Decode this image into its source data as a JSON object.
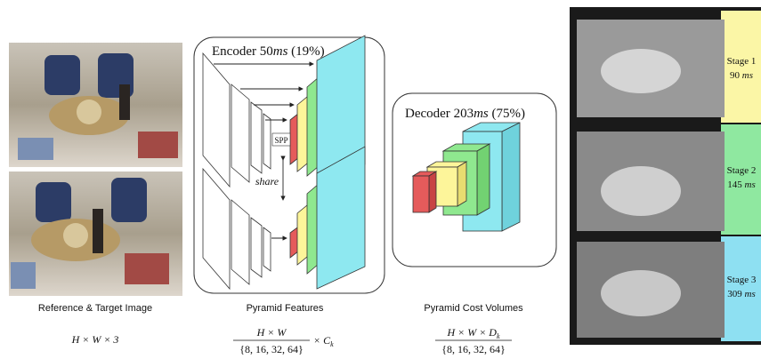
{
  "left": {
    "caption": "Reference & Target Image",
    "dim": "H × W × 3"
  },
  "encoder": {
    "title": "Encoder",
    "time": "50",
    "unit": "ms",
    "share": "(19%)",
    "spp": "SPP",
    "share_label": "share"
  },
  "decoder": {
    "title": "Decoder",
    "time": "203",
    "unit": "ms",
    "share": "(75%)"
  },
  "features": {
    "caption": "Pyramid Features",
    "numerator": "H × W",
    "denominator": "{8, 16, 32, 64}",
    "factor": "× C",
    "factor_sub": "k"
  },
  "cost": {
    "caption": "Pyramid Cost Volumes",
    "numerator": "H × W × D",
    "numerator_sub": "k",
    "denominator": "{8, 16, 32, 64}"
  },
  "stages": [
    {
      "label": "Stage 1",
      "time": "90",
      "unit": "ms"
    },
    {
      "label": "Stage 2",
      "time": "145",
      "unit": "ms"
    },
    {
      "label": "Stage 3",
      "time": "309",
      "unit": "ms"
    }
  ]
}
